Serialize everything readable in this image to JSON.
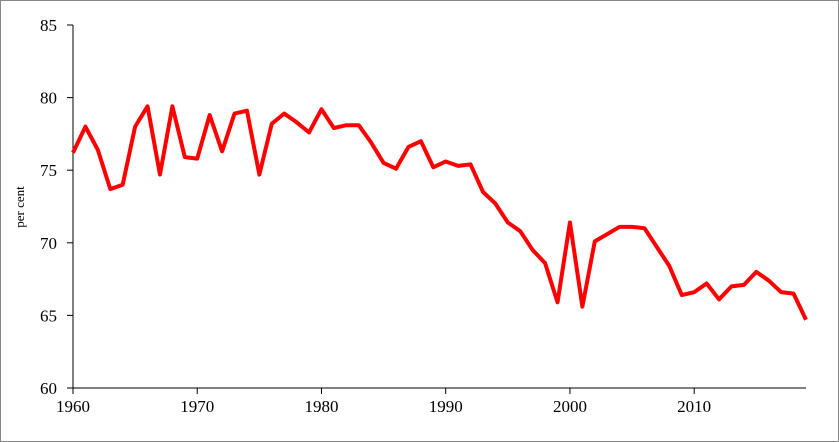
{
  "chart_data": {
    "type": "line",
    "y_label": "per cent",
    "x": [
      1960,
      1961,
      1962,
      1963,
      1964,
      1965,
      1966,
      1967,
      1968,
      1969,
      1970,
      1971,
      1972,
      1973,
      1974,
      1975,
      1976,
      1977,
      1978,
      1979,
      1980,
      1981,
      1982,
      1983,
      1984,
      1985,
      1986,
      1987,
      1988,
      1989,
      1990,
      1991,
      1992,
      1993,
      1994,
      1995,
      1996,
      1997,
      1998,
      1999,
      2000,
      2001,
      2002,
      2003,
      2004,
      2005,
      2006,
      2007,
      2008,
      2009,
      2010,
      2011,
      2012,
      2013,
      2014,
      2015,
      2016,
      2017,
      2018,
      2019
    ],
    "series": [
      {
        "color": "#ff0000",
        "values": [
          76.2,
          78.0,
          76.4,
          73.7,
          74.0,
          78.0,
          79.4,
          74.7,
          79.4,
          75.9,
          75.8,
          78.8,
          76.3,
          78.9,
          79.1,
          74.7,
          78.2,
          78.9,
          78.3,
          77.6,
          79.2,
          77.9,
          78.1,
          78.1,
          76.9,
          75.5,
          75.1,
          76.6,
          77.0,
          75.2,
          75.6,
          75.3,
          75.4,
          73.5,
          72.7,
          71.4,
          70.8,
          69.5,
          68.6,
          65.9,
          71.4,
          65.6,
          70.1,
          70.6,
          71.1,
          71.1,
          71.0,
          69.7,
          68.4,
          66.4,
          66.6,
          67.2,
          66.1,
          67.0,
          67.1,
          68.0,
          67.4,
          66.6,
          66.5,
          64.7
        ]
      }
    ],
    "xlim": [
      1960,
      2019
    ],
    "xticks": [
      1960,
      1970,
      1980,
      1990,
      2000,
      2010
    ],
    "ylim": [
      60,
      85
    ],
    "yticks": [
      60,
      65,
      70,
      75,
      80,
      85
    ]
  }
}
